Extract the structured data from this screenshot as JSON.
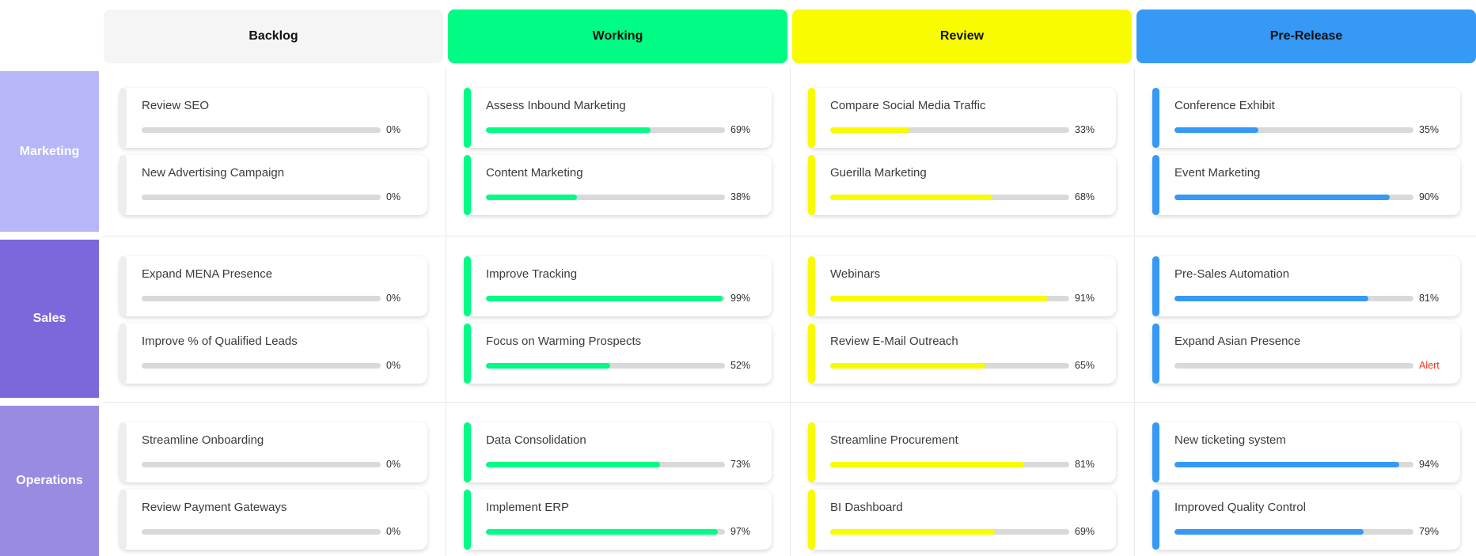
{
  "board": {
    "alert_color": "#f5311d",
    "divider_color": "#e8e8e8",
    "progress_track_color": "#d9d9d9",
    "columns": [
      {
        "key": "backlog",
        "label": "Backlog",
        "header_bg": "#f5f5f5",
        "header_text": "#111111",
        "accent": "#ededed",
        "fill": "#ededed"
      },
      {
        "key": "working",
        "label": "Working",
        "header_bg": "#00fb85",
        "header_text": "#111111",
        "accent": "#00fb85",
        "fill": "#00fb85"
      },
      {
        "key": "review",
        "label": "Review",
        "header_bg": "#f9fb00",
        "header_text": "#111111",
        "accent": "#f9fb00",
        "fill": "#f9fb00"
      },
      {
        "key": "pre-release",
        "label": "Pre-Release",
        "header_bg": "#3599f5",
        "header_text": "#111111",
        "accent": "#3599f5",
        "fill": "#3599f5"
      }
    ],
    "rows": [
      {
        "key": "marketing",
        "label": "Marketing",
        "bg": "#b7b6f8",
        "cells": [
          [
            {
              "title": "Review SEO",
              "percent": 0,
              "label": "0%"
            },
            {
              "title": "New Advertising Campaign",
              "percent": 0,
              "label": "0%"
            }
          ],
          [
            {
              "title": "Assess Inbound Marketing",
              "percent": 69,
              "label": "69%"
            },
            {
              "title": "Content Marketing",
              "percent": 38,
              "label": "38%"
            }
          ],
          [
            {
              "title": "Compare Social Media Traffic",
              "percent": 33,
              "label": "33%"
            },
            {
              "title": "Guerilla Marketing",
              "percent": 68,
              "label": "68%"
            }
          ],
          [
            {
              "title": "Conference Exhibit",
              "percent": 35,
              "label": "35%"
            },
            {
              "title": "Event Marketing",
              "percent": 90,
              "label": "90%"
            }
          ]
        ]
      },
      {
        "key": "sales",
        "label": "Sales",
        "bg": "#7c68db",
        "cells": [
          [
            {
              "title": "Expand MENA Presence",
              "percent": 0,
              "label": "0%"
            },
            {
              "title": "Improve % of Qualified Leads",
              "percent": 0,
              "label": "0%"
            }
          ],
          [
            {
              "title": "Improve Tracking",
              "percent": 99,
              "label": "99%"
            },
            {
              "title": "Focus on Warming Prospects",
              "percent": 52,
              "label": "52%"
            }
          ],
          [
            {
              "title": "Webinars",
              "percent": 91,
              "label": "91%"
            },
            {
              "title": "Review E-Mail Outreach",
              "percent": 65,
              "label": "65%"
            }
          ],
          [
            {
              "title": "Pre-Sales Automation",
              "percent": 81,
              "label": "81%"
            },
            {
              "title": "Expand Asian Presence",
              "percent": 0,
              "label": "Alert",
              "alert": true
            }
          ]
        ]
      },
      {
        "key": "operations",
        "label": "Operations",
        "bg": "#9a8be2",
        "cells": [
          [
            {
              "title": "Streamline Onboarding",
              "percent": 0,
              "label": "0%"
            },
            {
              "title": "Review Payment Gateways",
              "percent": 0,
              "label": "0%"
            }
          ],
          [
            {
              "title": "Data Consolidation",
              "percent": 73,
              "label": "73%"
            },
            {
              "title": "Implement ERP",
              "percent": 97,
              "label": "97%"
            }
          ],
          [
            {
              "title": "Streamline Procurement",
              "percent": 81,
              "label": "81%"
            },
            {
              "title": "BI Dashboard",
              "percent": 69,
              "label": "69%"
            }
          ],
          [
            {
              "title": "New ticketing system",
              "percent": 94,
              "label": "94%"
            },
            {
              "title": "Improved Quality Control",
              "percent": 79,
              "label": "79%"
            }
          ]
        ]
      }
    ]
  }
}
